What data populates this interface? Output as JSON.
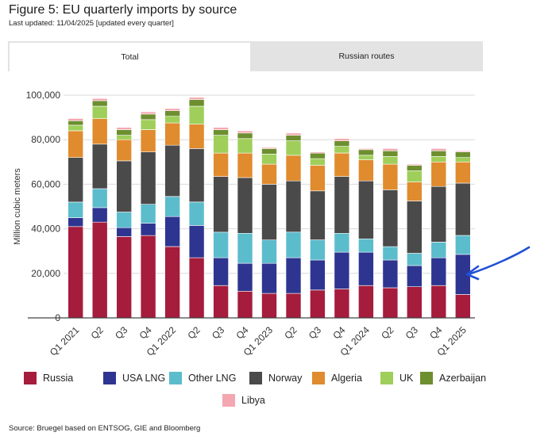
{
  "header": {
    "title": "Figure 5: EU quarterly imports by source",
    "subtitle": "Last updated: 11/04/2025 [updated every quarter]"
  },
  "tabs": [
    {
      "label": "Total",
      "active": true
    },
    {
      "label": "Russian routes",
      "active": false
    }
  ],
  "chart_data": {
    "type": "bar",
    "stacked": true,
    "title": "",
    "xlabel": "",
    "ylabel": "Million cubic meters",
    "ylim": [
      0,
      100000
    ],
    "yticks": [
      0,
      20000,
      40000,
      60000,
      80000,
      100000
    ],
    "ytick_labels": [
      "0",
      "20,000",
      "40,000",
      "60,000",
      "80,000",
      "100,000"
    ],
    "grid": true,
    "categories": [
      "Q1 2021",
      "Q2 2021",
      "Q3 2021",
      "Q4 2021",
      "Q1 2022",
      "Q2 2022",
      "Q3 2022",
      "Q4 2022",
      "Q1 2023",
      "Q2 2023",
      "Q3 2023",
      "Q4 2023",
      "Q1 2024",
      "Q2 2024",
      "Q3 2024",
      "Q4 2024",
      "Q1 2025"
    ],
    "tick_labels": [
      "Q1 2021",
      "Q2",
      "Q3",
      "Q4",
      "Q1 2022",
      "Q2",
      "Q3",
      "Q4",
      "Q1 2023",
      "Q2",
      "Q3",
      "Q4",
      "Q1 2024",
      "Q2",
      "Q3",
      "Q4",
      "Q1 2025"
    ],
    "series": [
      {
        "name": "Russia",
        "color": "#a51c3c",
        "values": [
          41000,
          43000,
          36500,
          37000,
          32000,
          27000,
          14500,
          12000,
          11000,
          11000,
          12500,
          13000,
          14500,
          13500,
          14000,
          14500,
          10500
        ]
      },
      {
        "name": "USA LNG",
        "color": "#2e3590",
        "values": [
          4000,
          6500,
          4000,
          5500,
          13500,
          14500,
          12500,
          12500,
          13500,
          16000,
          13500,
          16500,
          15000,
          12500,
          9500,
          12500,
          18000
        ]
      },
      {
        "name": "Other LNG",
        "color": "#5bbccc",
        "values": [
          7000,
          8500,
          7000,
          8500,
          9000,
          10500,
          11500,
          13500,
          10500,
          11500,
          9000,
          8500,
          6000,
          6000,
          5500,
          7000,
          8500
        ]
      },
      {
        "name": "Norway",
        "color": "#4a4a4a",
        "values": [
          20000,
          20000,
          23000,
          23500,
          23000,
          24000,
          25000,
          25000,
          25000,
          23000,
          22000,
          25500,
          26000,
          25500,
          23500,
          25000,
          23500
        ]
      },
      {
        "name": "Algeria",
        "color": "#e08b2e",
        "values": [
          12000,
          11500,
          9500,
          10000,
          10000,
          11000,
          10500,
          11000,
          9000,
          11500,
          11500,
          10500,
          9500,
          11500,
          8500,
          11000,
          9500
        ]
      },
      {
        "name": "UK",
        "color": "#9fcf5a",
        "values": [
          2500,
          5500,
          2000,
          4500,
          3000,
          8000,
          8000,
          6500,
          4500,
          6500,
          3000,
          3000,
          2000,
          3500,
          5000,
          2500,
          2000
        ]
      },
      {
        "name": "Azerbaijan",
        "color": "#6d8f30",
        "values": [
          2000,
          2500,
          2500,
          2500,
          2500,
          3000,
          2500,
          2500,
          2500,
          2500,
          2500,
          2500,
          2500,
          2500,
          2500,
          2500,
          2500
        ]
      },
      {
        "name": "Libya",
        "color": "#f4a7b0",
        "values": [
          1000,
          1000,
          1000,
          1000,
          1000,
          1000,
          1000,
          1000,
          500,
          1000,
          500,
          1000,
          500,
          1000,
          500,
          1000,
          500
        ]
      }
    ]
  },
  "legend": {
    "items": [
      {
        "name": "Russia",
        "color": "#a51c3c"
      },
      {
        "name": "USA LNG",
        "color": "#2e3590"
      },
      {
        "name": "Other LNG",
        "color": "#5bbccc"
      },
      {
        "name": "Norway",
        "color": "#4a4a4a"
      },
      {
        "name": "Algeria",
        "color": "#e08b2e"
      },
      {
        "name": "UK",
        "color": "#9fcf5a"
      },
      {
        "name": "Azerbaijan",
        "color": "#6d8f30"
      },
      {
        "name": "Libya",
        "color": "#f4a7b0"
      }
    ]
  },
  "annotation": {
    "icon": "hand-drawn-arrow-icon",
    "color": "#1f4fd6"
  },
  "footer": {
    "source": "Source: Bruegel based on ENTSOG, GIE and Bloomberg"
  }
}
